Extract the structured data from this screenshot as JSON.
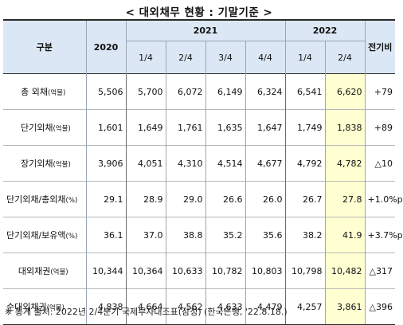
{
  "title": "< 대외채무 현황 : 기말기준 >",
  "header": {
    "category": "구분",
    "y2020": "2020",
    "y2021": "2021",
    "y2022": "2022",
    "prev": "전기비",
    "q2021": [
      "1/4",
      "2/4",
      "3/4",
      "4/4"
    ],
    "q2022": [
      "1/4",
      "2/4"
    ]
  },
  "rows": [
    {
      "label": "총 외채",
      "unit": "(억불)",
      "values": [
        "5,506",
        "5,700",
        "6,072",
        "6,149",
        "6,324",
        "6,541",
        "6,620"
      ],
      "change": "+79"
    },
    {
      "label": "단기외채",
      "unit": "(억불)",
      "values": [
        "1,601",
        "1,649",
        "1,761",
        "1,635",
        "1,647",
        "1,749",
        "1,838"
      ],
      "change": "+89"
    },
    {
      "label": "장기외채",
      "unit": "(억불)",
      "values": [
        "3,906",
        "4,051",
        "4,310",
        "4,514",
        "4,677",
        "4,792",
        "4,782"
      ],
      "change": "△10"
    },
    {
      "label": "단기외채/총외채",
      "unit": "(%)",
      "values": [
        "29.1",
        "28.9",
        "29.0",
        "26.6",
        "26.0",
        "26.7",
        "27.8"
      ],
      "change": "+1.0%p"
    },
    {
      "label": "단기외채/보유액",
      "unit": "(%)",
      "values": [
        "36.1",
        "37.0",
        "38.8",
        "35.2",
        "35.6",
        "38.2",
        "41.9"
      ],
      "change": "+3.7%p"
    },
    {
      "label": "대외채권",
      "unit": "(억불)",
      "values": [
        "10,344",
        "10,364",
        "10,633",
        "10,782",
        "10,803",
        "10,798",
        "10,482"
      ],
      "change": "△317"
    },
    {
      "label": "순대외채권",
      "unit": "(억불)",
      "values": [
        "4,838",
        "4,664",
        "4,562",
        "4,633",
        "4,479",
        "4,257",
        "3,861"
      ],
      "change": "△396"
    }
  ],
  "footnote": "※ 통계 출처: 2022년 2/4분기 국제투자대조표(잠정) (한국은행, '22.8.18.)"
}
